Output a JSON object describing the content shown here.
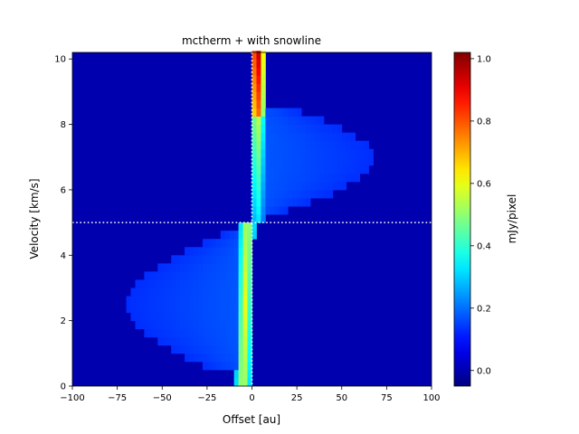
{
  "chart_data": {
    "type": "heatmap",
    "title": "mctherm + with snowline",
    "xlabel": "Offset [au]",
    "ylabel": "Velocity [km/s]",
    "colorbar_label": "mJy/pixel",
    "colormap": "jet",
    "xlim": [
      -100,
      100
    ],
    "ylim": [
      0,
      10.2
    ],
    "clim": [
      -0.05,
      1.02
    ],
    "x_ticks": [
      -100,
      -75,
      -50,
      -25,
      0,
      25,
      50,
      75,
      100
    ],
    "x_tick_labels": [
      "−100",
      "−75",
      "−50",
      "−25",
      "0",
      "25",
      "50",
      "75",
      "100"
    ],
    "y_ticks": [
      0,
      2,
      4,
      6,
      8,
      10
    ],
    "y_tick_labels": [
      "0",
      "2",
      "4",
      "6",
      "8",
      "10"
    ],
    "colorbar_ticks": [
      0.0,
      0.2,
      0.4,
      0.6,
      0.8,
      1.0
    ],
    "colorbar_tick_labels": [
      "0.0",
      "0.2",
      "0.4",
      "0.6",
      "0.8",
      "1.0"
    ],
    "grid": false,
    "reference_lines": [
      {
        "orientation": "horizontal",
        "value": 5.0,
        "style": "dotted",
        "color": "#ffffff"
      },
      {
        "orientation": "vertical",
        "value": 0,
        "style": "dotted",
        "color": "#ffffff"
      }
    ],
    "background_value": 0.0
  }
}
